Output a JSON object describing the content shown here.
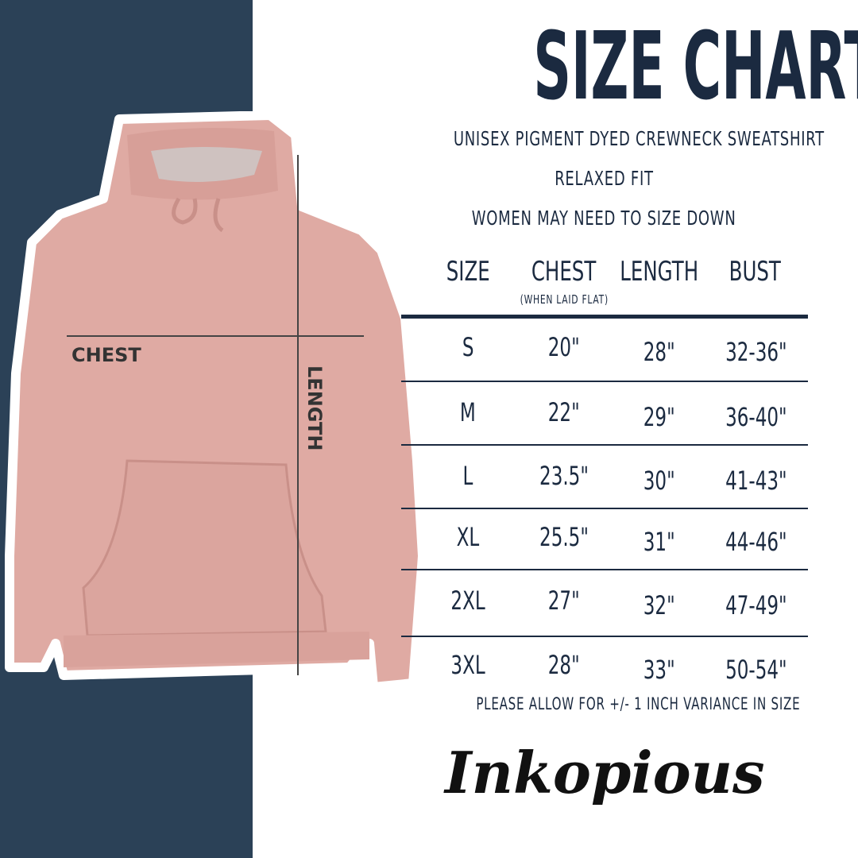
{
  "title": "SIZE CHART",
  "subtitle_lines": [
    "UNISEX PIGMENT DYED CREWNECK SWEATSHIRT",
    "RELAXED FIT",
    "WOMEN MAY NEED TO SIZE DOWN"
  ],
  "diagram_labels": {
    "chest": "CHEST",
    "length": "LENGTH"
  },
  "table": {
    "headers": [
      "SIZE",
      "CHEST",
      "LENGTH",
      "BUST"
    ],
    "chest_note": "(WHEN LAID FLAT)",
    "rows": [
      [
        "S",
        "20\"",
        "28\"",
        "32-36\""
      ],
      [
        "M",
        "22\"",
        "29\"",
        "36-40\""
      ],
      [
        "L",
        "23.5\"",
        "30\"",
        "41-43\""
      ],
      [
        "XL",
        "25.5\"",
        "31\"",
        "44-46\""
      ],
      [
        "2XL",
        "27\"",
        "32\"",
        "47-49\""
      ],
      [
        "3XL",
        "28\"",
        "33\"",
        "50-54\""
      ]
    ]
  },
  "footer_note": "PLEASE ALLOW FOR +/- 1 INCH VARIANCE IN SIZE",
  "logo_text": "Inkopious",
  "colors": {
    "navy": "#1b2a40",
    "panel": "#2b4157",
    "hoodie": "#dfaaa3"
  }
}
